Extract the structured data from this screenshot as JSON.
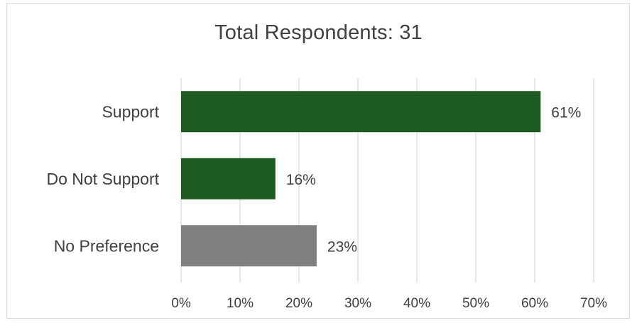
{
  "chart_data": {
    "type": "bar",
    "orientation": "horizontal",
    "title": "Total Respondents: 31",
    "categories": [
      "Support",
      "Do Not Support",
      "No Preference"
    ],
    "values": [
      61,
      16,
      23
    ],
    "data_labels": [
      "61%",
      "16%",
      "23%"
    ],
    "colors": [
      "#1e5b20",
      "#1e5b20",
      "#808080"
    ],
    "xlim": [
      0,
      70
    ],
    "x_ticks": [
      0,
      10,
      20,
      30,
      40,
      50,
      60,
      70
    ],
    "x_tick_labels": [
      "0%",
      "10%",
      "20%",
      "30%",
      "40%",
      "50%",
      "60%",
      "70%"
    ],
    "grid": "vertical",
    "legend": "none"
  }
}
